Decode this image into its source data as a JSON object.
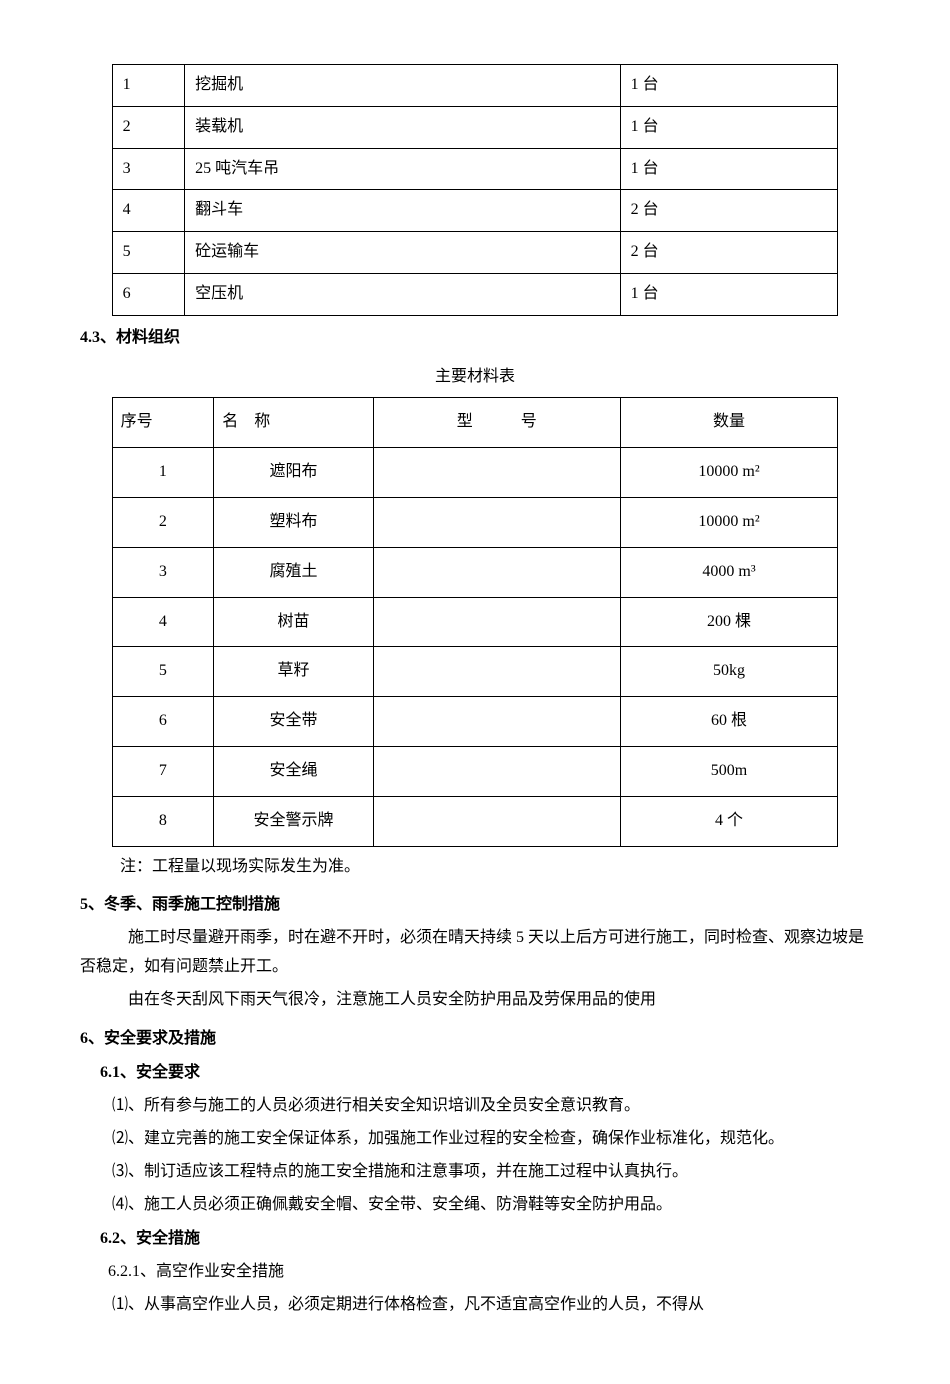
{
  "equipment_table": {
    "rows": [
      {
        "n": "1",
        "name": "挖掘机",
        "qty": "1 台"
      },
      {
        "n": "2",
        "name": "装载机",
        "qty": "1 台"
      },
      {
        "n": "3",
        "name": "25 吨汽车吊",
        "qty": "1 台"
      },
      {
        "n": "4",
        "name": "翻斗车",
        "qty": "2 台"
      },
      {
        "n": "5",
        "name": "砼运输车",
        "qty": "2 台"
      },
      {
        "n": "6",
        "name": "空压机",
        "qty": "1 台"
      }
    ]
  },
  "s43_heading": "4.3、材料组织",
  "materials_caption": "主要材料表",
  "materials_table": {
    "headers": {
      "c1": "序号",
      "c2": "名　称",
      "c3": "型　　　号",
      "c4": "数量"
    },
    "rows": [
      {
        "n": "1",
        "name": "遮阳布",
        "model": "",
        "qty": "10000 m²"
      },
      {
        "n": "2",
        "name": "塑料布",
        "model": "",
        "qty": "10000 m²"
      },
      {
        "n": "3",
        "name": "腐殖土",
        "model": "",
        "qty": "4000 m³"
      },
      {
        "n": "4",
        "name": "树苗",
        "model": "",
        "qty": "200 棵"
      },
      {
        "n": "5",
        "name": "草籽",
        "model": "",
        "qty": "50kg"
      },
      {
        "n": "6",
        "name": "安全带",
        "model": "",
        "qty": "60 根"
      },
      {
        "n": "7",
        "name": "安全绳",
        "model": "",
        "qty": "500m"
      },
      {
        "n": "8",
        "name": "安全警示牌",
        "model": "",
        "qty": "4 个"
      }
    ]
  },
  "materials_note": "注：工程量以现场实际发生为准。",
  "s5_title": "5、冬季、雨季施工控制措施",
  "s5_p1": "施工时尽量避开雨季，时在避不开时，必须在晴天持续 5 天以上后方可进行施工，同时检查、观察边坡是否稳定，如有问题禁止开工。",
  "s5_p2": "由在冬天刮风下雨天气很冷，注意施工人员安全防护用品及劳保用品的使用",
  "s6_title": "6、安全要求及措施",
  "s61_title": "6.1、安全要求",
  "s61_i1": "⑴、所有参与施工的人员必须进行相关安全知识培训及全员安全意识教育。",
  "s61_i2": "⑵、建立完善的施工安全保证体系，加强施工作业过程的安全检查，确保作业标准化，规范化。",
  "s61_i3": "⑶、制订适应该工程特点的施工安全措施和注意事项，并在施工过程中认真执行。",
  "s61_i4": "⑷、施工人员必须正确佩戴安全帽、安全带、安全绳、防滑鞋等安全防护用品。",
  "s62_title": "6.2、安全措施",
  "s621_title": "6.2.1、高空作业安全措施",
  "s621_i1": "⑴、从事高空作业人员，必须定期进行体格检查，凡不适宜高空作业的人员，不得从"
}
